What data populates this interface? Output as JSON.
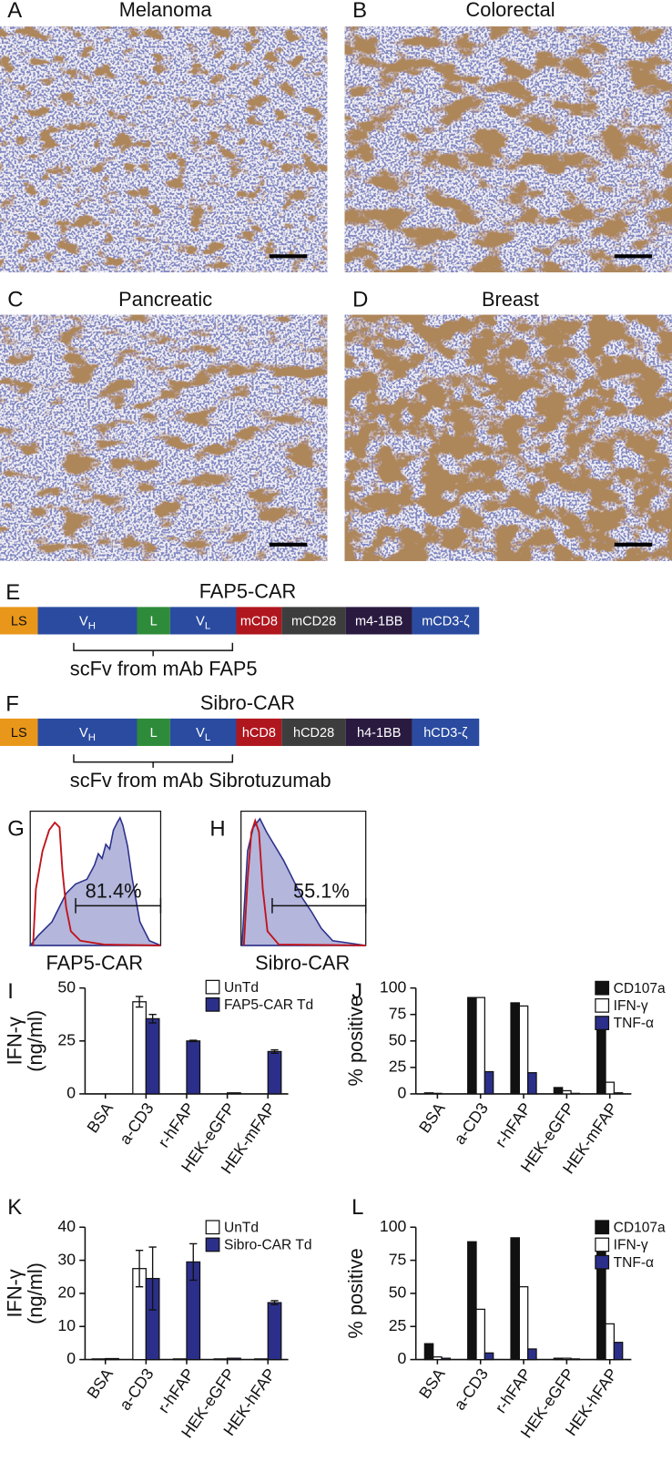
{
  "micrographs": [
    {
      "label": "A",
      "title": "Melanoma"
    },
    {
      "label": "B",
      "title": "Colorectal"
    },
    {
      "label": "C",
      "title": "Pancreatic"
    },
    {
      "label": "D",
      "title": "Breast"
    }
  ],
  "constructs": [
    {
      "label": "E",
      "title": "FAP5-CAR",
      "segments": [
        {
          "label": "LS"
        },
        {
          "label": "V",
          "sub": "H"
        },
        {
          "label": "L"
        },
        {
          "label": "V",
          "sub": "L"
        },
        {
          "label": "mCD8"
        },
        {
          "label": "mCD28"
        },
        {
          "label": "m4-1BB"
        },
        {
          "label": "mCD3-ζ"
        }
      ],
      "bracket_label": "scFv from mAb FAP5"
    },
    {
      "label": "F",
      "title": "Sibro-CAR",
      "segments": [
        {
          "label": "LS"
        },
        {
          "label": "V",
          "sub": "H"
        },
        {
          "label": "L"
        },
        {
          "label": "V",
          "sub": "L"
        },
        {
          "label": "hCD8"
        },
        {
          "label": "hCD28"
        },
        {
          "label": "h4-1BB"
        },
        {
          "label": "hCD3-ζ"
        }
      ],
      "bracket_label": "scFv from mAb Sibrotuzumab"
    }
  ],
  "flow": [
    {
      "label": "G",
      "gate": "81.4%",
      "x_label": "FAP5-CAR"
    },
    {
      "label": "H",
      "gate": "55.1%",
      "x_label": "Sibro-CAR"
    }
  ],
  "chart_data": [
    {
      "type": "bar",
      "panel": "I",
      "ylabel": [
        "IFN-γ",
        "(ng/ml)"
      ],
      "categories": [
        "BSA",
        "a-CD3",
        "r-hFAP",
        "HEK-eGFP",
        "HEK-mFAP"
      ],
      "series": [
        {
          "name": "UnTd",
          "color": "#ffffff",
          "values": [
            0,
            43.5,
            0,
            0,
            0
          ],
          "errors": [
            null,
            2.5,
            null,
            null,
            null
          ]
        },
        {
          "name": "FAP5-CAR Td",
          "color": "#2b2f8a",
          "values": [
            0,
            35.5,
            25,
            0.5,
            20
          ],
          "errors": [
            null,
            2,
            0.3,
            null,
            0.8
          ]
        }
      ],
      "ylim": [
        0,
        50
      ],
      "yticks": [
        0,
        25,
        50
      ],
      "legend": "top-right"
    },
    {
      "type": "bar",
      "panel": "J",
      "ylabel": [
        "% positive"
      ],
      "categories": [
        "BSA",
        "a-CD3",
        "r-hFAP",
        "HEK-eGFP",
        "HEK-mFAP"
      ],
      "series": [
        {
          "name": "CD107a",
          "color": "#111111",
          "values": [
            1,
            91,
            86,
            6,
            66
          ]
        },
        {
          "name": "IFN-γ",
          "color": "#ffffff",
          "values": [
            0.5,
            91,
            83,
            3,
            11
          ]
        },
        {
          "name": "TNF-α",
          "color": "#2b2f8a",
          "values": [
            0,
            21,
            20,
            0.5,
            1
          ]
        }
      ],
      "ylim": [
        0,
        100
      ],
      "yticks": [
        0,
        25,
        50,
        75,
        100
      ],
      "legend": "top-right"
    },
    {
      "type": "bar",
      "panel": "K",
      "ylabel": [
        "IFN-γ",
        "(ng/ml)"
      ],
      "categories": [
        "BSA",
        "a-CD3",
        "r-hFAP",
        "HEK-eGFP",
        "HEK-hFAP"
      ],
      "series": [
        {
          "name": "UnTd",
          "color": "#ffffff",
          "values": [
            0.2,
            27.5,
            0.2,
            0.2,
            0.2
          ],
          "errors": [
            null,
            5.5,
            null,
            null,
            null
          ]
        },
        {
          "name": "Sibro-CAR Td",
          "color": "#2b2f8a",
          "values": [
            0.3,
            24.5,
            29.5,
            0.4,
            17.2
          ],
          "errors": [
            null,
            9.5,
            5.5,
            null,
            0.6
          ]
        }
      ],
      "ylim": [
        0,
        40
      ],
      "yticks": [
        0,
        10,
        20,
        30,
        40
      ],
      "legend": "top-right"
    },
    {
      "type": "bar",
      "panel": "L",
      "ylabel": [
        "% positive"
      ],
      "categories": [
        "BSA",
        "a-CD3",
        "r-hFAP",
        "HEK-eGFP",
        "HEK-hFAP"
      ],
      "series": [
        {
          "name": "CD107a",
          "color": "#111111",
          "values": [
            12,
            89,
            92,
            1,
            85
          ]
        },
        {
          "name": "IFN-γ",
          "color": "#ffffff",
          "values": [
            2,
            38,
            55,
            1,
            27
          ]
        },
        {
          "name": "TNF-α",
          "color": "#2b2f8a",
          "values": [
            1,
            5,
            8,
            0.5,
            13
          ]
        }
      ],
      "ylim": [
        0,
        100
      ],
      "yticks": [
        0,
        25,
        50,
        75,
        100
      ],
      "legend": "top-right"
    }
  ]
}
